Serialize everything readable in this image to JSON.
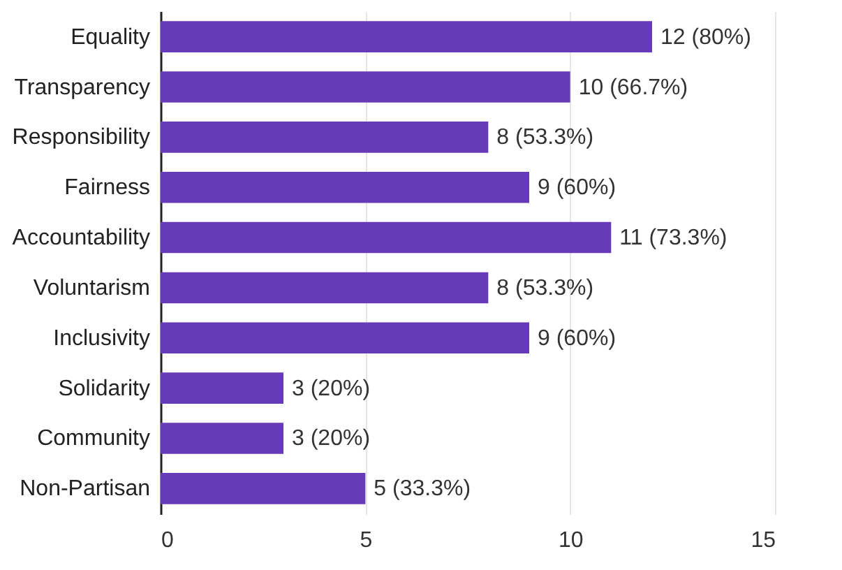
{
  "chart_data": {
    "type": "bar",
    "orientation": "horizontal",
    "categories": [
      "Equality",
      "Transparency",
      "Responsibility",
      "Fairness",
      "Accountability",
      "Voluntarism",
      "Inclusivity",
      "Solidarity",
      "Community",
      "Non-Partisan"
    ],
    "values": [
      12,
      10,
      8,
      9,
      11,
      8,
      9,
      3,
      3,
      5
    ],
    "value_labels": [
      "12 (80%)",
      "10 (66.7%)",
      "8 (53.3%)",
      "9 (60%)",
      "11 (73.3%)",
      "8 (53.3%)",
      "9 (60%)",
      "3 (20%)",
      "3 (20%)",
      "5 (33.3%)"
    ],
    "color": "#673ab7",
    "xlim": [
      0,
      15
    ],
    "xticks": [
      0,
      5,
      10,
      15
    ],
    "grid": "x"
  }
}
